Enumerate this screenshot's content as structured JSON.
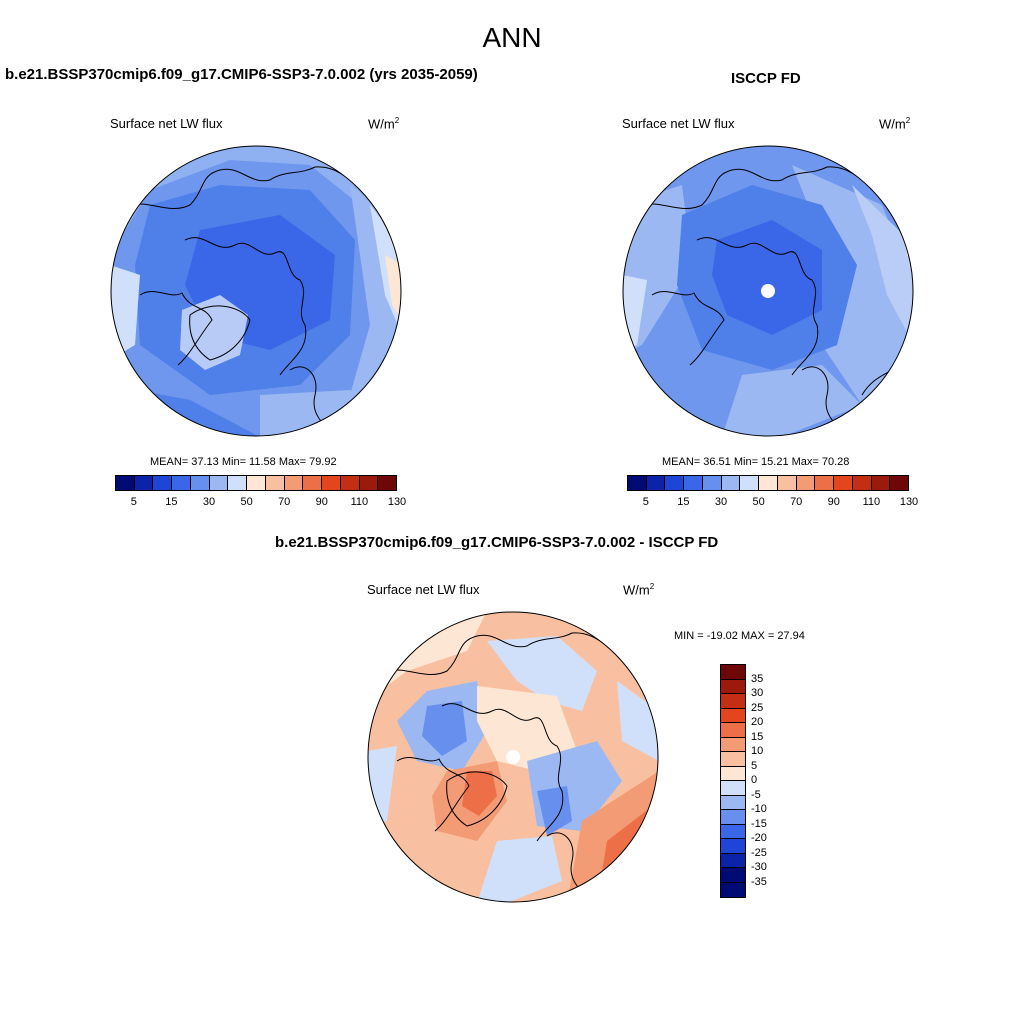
{
  "figure": {
    "title": "ANN"
  },
  "panels": [
    {
      "title": "b.e21.BSSP370cmip6.f09_g17.CMIP6-SSP3-7.0.002 (yrs 2035-2059)",
      "variable": "Surface net LW flux",
      "units": "W/m",
      "units_sup": "2",
      "stats": "MEAN=  37.13  Min=  11.58  Max=  79.92"
    },
    {
      "title": "ISCCP FD",
      "variable": "Surface net LW flux",
      "units": "W/m",
      "units_sup": "2",
      "stats": "MEAN=  36.51  Min=  15.21  Max=  70.28"
    },
    {
      "title": "b.e21.BSSP370cmip6.f09_g17.CMIP6-SSP3-7.0.002 - ISCCP FD",
      "variable": "Surface net LW flux",
      "units": "W/m",
      "units_sup": "2",
      "stats": "MIN = -19.02 MAX =  27.94"
    }
  ],
  "colorbar_main": {
    "labels": [
      "5",
      "15",
      "30",
      "50",
      "70",
      "90",
      "110",
      "130"
    ],
    "colors": [
      "#000a73",
      "#0b23a8",
      "#1e45d6",
      "#3a67e8",
      "#6790ee",
      "#9cb8f3",
      "#d1e0fa",
      "#fde6d3",
      "#f8c0a0",
      "#f29b75",
      "#ec6f48",
      "#e3461f",
      "#c42e14",
      "#9b1a0b",
      "#6e0808"
    ]
  },
  "colorbar_diff": {
    "labels": [
      "35",
      "30",
      "25",
      "20",
      "15",
      "10",
      "5",
      "0",
      "-5",
      "-10",
      "-15",
      "-20",
      "-25",
      "-30",
      "-35"
    ],
    "colors": [
      "#6e0808",
      "#9b1a0b",
      "#c42e14",
      "#e3461f",
      "#ec6f48",
      "#f29b75",
      "#f8c0a0",
      "#fde6d3",
      "#d1e0fa",
      "#9cb8f3",
      "#6790ee",
      "#3a67e8",
      "#1e45d6",
      "#0b23a8",
      "#000a73",
      "#000a73"
    ]
  },
  "map_colors": {
    "deep_blue": "#3a67e8",
    "mid_blue": "#5a86ec",
    "light_blue": "#9cb8f3",
    "pale_blue": "#d1e0fa",
    "pale_orange": "#fde6d3",
    "orange": "#f8c0a0",
    "red_orange": "#ec6f48"
  }
}
